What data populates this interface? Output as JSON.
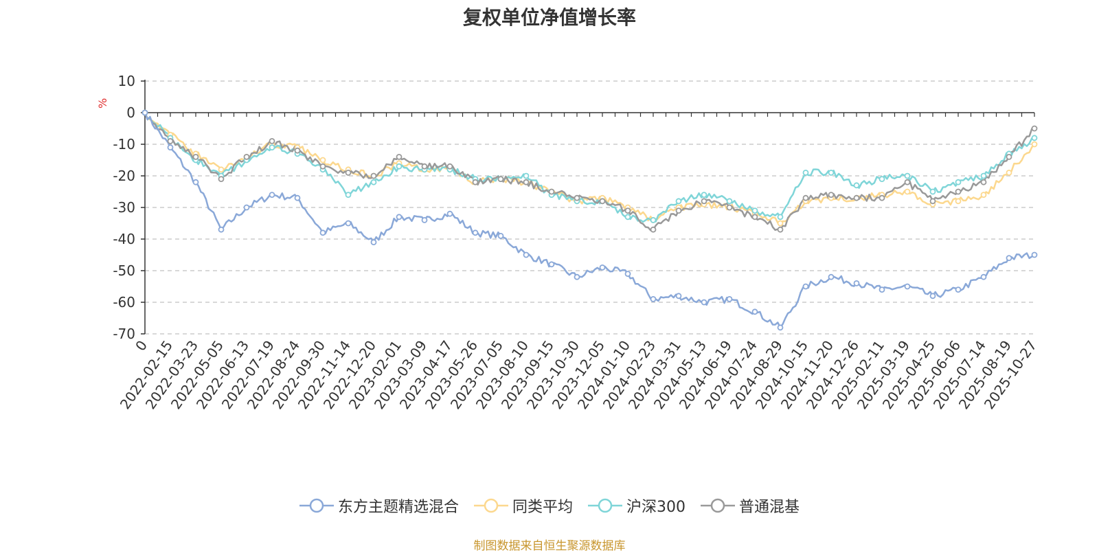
{
  "chart_data": {
    "type": "line",
    "title": "复权单位净值增长率",
    "ylabel": "%",
    "ylim": [
      -70,
      10
    ],
    "yticks": [
      10,
      0,
      -10,
      -20,
      -30,
      -40,
      -50,
      -60,
      -70
    ],
    "x_labels": [
      "0",
      "2022-02-15",
      "2022-03-23",
      "2022-05-05",
      "2022-06-13",
      "2022-07-19",
      "2022-08-24",
      "2022-09-30",
      "2022-11-14",
      "2022-12-20",
      "2023-02-01",
      "2023-03-09",
      "2023-04-17",
      "2023-05-26",
      "2023-07-05",
      "2023-08-10",
      "2023-09-15",
      "2023-10-30",
      "2023-12-05",
      "2024-01-10",
      "2024-02-23",
      "2024-03-31",
      "2024-05-13",
      "2024-06-19",
      "2024-07-24",
      "2024-08-29",
      "2024-10-15",
      "2024-11-20",
      "2024-12-26",
      "2025-02-11",
      "2025-03-19",
      "2025-04-25",
      "2025-06-06",
      "2025-07-14",
      "2025-08-19",
      "2025-10-27"
    ],
    "grid": "horizontal dashed",
    "legend_position": "bottom",
    "series": [
      {
        "name": "东方主题精选混合",
        "color": "#8aa8d8",
        "values": [
          0,
          -11,
          -22,
          -37,
          -30,
          -26,
          -27,
          -38,
          -35,
          -41,
          -33,
          -34,
          -32,
          -38,
          -39,
          -45,
          -48,
          -52,
          -49,
          -51,
          -59,
          -58,
          -60,
          -59,
          -63,
          -68,
          -55,
          -52,
          -54,
          -56,
          -55,
          -58,
          -56,
          -52,
          -46,
          -45
        ]
      },
      {
        "name": "同类平均",
        "color": "#fcd88e",
        "values": [
          0,
          -7,
          -13,
          -18,
          -14,
          -10,
          -11,
          -15,
          -18,
          -20,
          -16,
          -18,
          -18,
          -22,
          -21,
          -22,
          -25,
          -28,
          -27,
          -30,
          -34,
          -30,
          -29,
          -30,
          -32,
          -35,
          -28,
          -27,
          -27,
          -26,
          -25,
          -29,
          -28,
          -26,
          -19,
          -10
        ]
      },
      {
        "name": "沪深300",
        "color": "#7fd5d8",
        "values": [
          0,
          -8,
          -15,
          -20,
          -15,
          -11,
          -13,
          -18,
          -26,
          -22,
          -17,
          -18,
          -18,
          -21,
          -21,
          -20,
          -26,
          -28,
          -28,
          -33,
          -34,
          -28,
          -26,
          -28,
          -31,
          -33,
          -19,
          -19,
          -23,
          -21,
          -20,
          -25,
          -22,
          -20,
          -13,
          -8
        ]
      },
      {
        "name": "普通混基",
        "color": "#999999",
        "values": [
          0,
          -9,
          -14,
          -21,
          -14,
          -9,
          -12,
          -17,
          -19,
          -20,
          -14,
          -17,
          -17,
          -22,
          -21,
          -22,
          -25,
          -27,
          -28,
          -31,
          -37,
          -31,
          -28,
          -30,
          -33,
          -37,
          -27,
          -26,
          -27,
          -27,
          -22,
          -28,
          -25,
          -22,
          -14,
          -5
        ]
      }
    ]
  },
  "source": "制图数据来自恒生聚源数据库"
}
